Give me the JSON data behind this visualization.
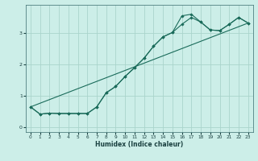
{
  "xlabel": "Humidex (Indice chaleur)",
  "background_color": "#cceee8",
  "line_color": "#1a6b5a",
  "grid_color": "#aad4cc",
  "xlim": [
    -0.5,
    23.5
  ],
  "ylim": [
    -0.15,
    3.9
  ],
  "xticks": [
    0,
    1,
    2,
    3,
    4,
    5,
    6,
    7,
    8,
    9,
    10,
    11,
    12,
    13,
    14,
    15,
    16,
    17,
    18,
    19,
    20,
    21,
    22,
    23
  ],
  "yticks": [
    0,
    1,
    2,
    3
  ],
  "series1_x": [
    0,
    1,
    2,
    3,
    4,
    5,
    6,
    7,
    8,
    9,
    10,
    11,
    12,
    13,
    14,
    15,
    16,
    17,
    18,
    19,
    20,
    21,
    22,
    23
  ],
  "series1_y": [
    0.65,
    0.42,
    0.45,
    0.44,
    0.44,
    0.44,
    0.44,
    0.65,
    1.1,
    1.3,
    1.62,
    1.9,
    2.2,
    2.58,
    2.88,
    3.02,
    3.28,
    3.5,
    3.35,
    3.1,
    3.08,
    3.28,
    3.5,
    3.32
  ],
  "series2_x": [
    0,
    1,
    2,
    3,
    4,
    5,
    6,
    7,
    8,
    9,
    10,
    11,
    12,
    13,
    14,
    15,
    16,
    17,
    18,
    19,
    20,
    21,
    22,
    23
  ],
  "series2_y": [
    0.65,
    0.42,
    0.45,
    0.44,
    0.44,
    0.44,
    0.44,
    0.65,
    1.1,
    1.3,
    1.62,
    1.9,
    2.2,
    2.58,
    2.88,
    3.02,
    3.55,
    3.6,
    3.35,
    3.1,
    3.08,
    3.28,
    3.5,
    3.32
  ],
  "series3_x": [
    0,
    23
  ],
  "series3_y": [
    0.65,
    3.32
  ]
}
